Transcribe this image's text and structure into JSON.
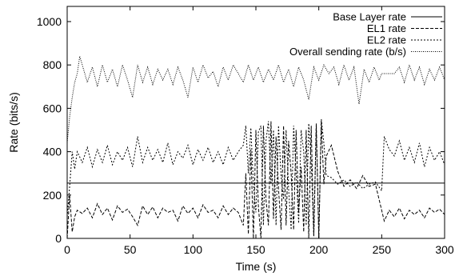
{
  "chart_data": {
    "type": "line",
    "xlabel": "Time (s)",
    "ylabel": "Rate (bits/s)",
    "xlim": [
      0,
      300
    ],
    "ylim": [
      0,
      1070
    ],
    "xticks": [
      "0",
      "50",
      "100",
      "150",
      "200",
      "250",
      "300"
    ],
    "yticks": [
      "0",
      "200",
      "400",
      "600",
      "800",
      "1000"
    ],
    "grid": false,
    "legend_position": "top-right",
    "series": [
      {
        "name": "Base Layer rate",
        "style": "solid",
        "x": [
          0,
          300
        ],
        "y": [
          255,
          255
        ]
      },
      {
        "name": "EL1 rate",
        "style": "dashed",
        "x": [
          0,
          2,
          4,
          6,
          8,
          12,
          16,
          20,
          24,
          28,
          32,
          36,
          40,
          44,
          48,
          52,
          56,
          60,
          64,
          68,
          72,
          76,
          80,
          84,
          88,
          92,
          96,
          100,
          104,
          108,
          112,
          116,
          120,
          124,
          128,
          132,
          136,
          140,
          142,
          144,
          146,
          148,
          150,
          152,
          154,
          156,
          158,
          160,
          162,
          164,
          166,
          168,
          170,
          172,
          174,
          176,
          178,
          180,
          182,
          184,
          186,
          188,
          190,
          192,
          194,
          196,
          198,
          200,
          202,
          204,
          206,
          210,
          215,
          220,
          225,
          230,
          235,
          240,
          245,
          250,
          252,
          256,
          260,
          264,
          268,
          272,
          276,
          280,
          284,
          288,
          292,
          296,
          300
        ],
        "y": [
          0,
          200,
          30,
          100,
          130,
          115,
          140,
          95,
          160,
          110,
          140,
          85,
          150,
          120,
          135,
          100,
          60,
          150,
          110,
          145,
          95,
          140,
          120,
          130,
          80,
          150,
          115,
          140,
          95,
          155,
          120,
          130,
          95,
          150,
          110,
          140,
          120,
          60,
          300,
          20,
          410,
          0,
          500,
          150,
          0,
          520,
          180,
          60,
          540,
          90,
          470,
          230,
          40,
          520,
          60,
          450,
          300,
          40,
          500,
          120,
          330,
          30,
          500,
          0,
          520,
          10,
          530,
          0,
          540,
          250,
          380,
          430,
          310,
          240,
          270,
          230,
          290,
          240,
          250,
          130,
          80,
          130,
          100,
          140,
          90,
          130,
          110,
          130,
          95,
          140,
          120,
          135,
          110
        ]
      },
      {
        "name": "EL2 rate",
        "style": "dashed-fine",
        "x": [
          0,
          2,
          4,
          6,
          8,
          12,
          16,
          20,
          24,
          28,
          32,
          36,
          40,
          44,
          48,
          52,
          56,
          60,
          64,
          68,
          72,
          76,
          80,
          84,
          88,
          92,
          96,
          100,
          104,
          108,
          112,
          116,
          120,
          124,
          128,
          132,
          136,
          140,
          142,
          144,
          146,
          148,
          150,
          152,
          154,
          156,
          158,
          160,
          162,
          164,
          166,
          168,
          170,
          172,
          174,
          176,
          178,
          180,
          182,
          184,
          186,
          188,
          190,
          192,
          194,
          196,
          198,
          200,
          202,
          204,
          206,
          210,
          215,
          220,
          225,
          230,
          235,
          240,
          245,
          250,
          252,
          256,
          260,
          264,
          268,
          272,
          276,
          280,
          284,
          288,
          292,
          296,
          300
        ],
        "y": [
          100,
          240,
          400,
          320,
          400,
          350,
          420,
          330,
          410,
          350,
          430,
          340,
          400,
          360,
          420,
          330,
          470,
          350,
          420,
          360,
          410,
          350,
          440,
          340,
          400,
          370,
          430,
          340,
          410,
          360,
          420,
          350,
          400,
          340,
          420,
          360,
          400,
          430,
          520,
          300,
          510,
          250,
          120,
          490,
          520,
          60,
          450,
          540,
          250,
          500,
          60,
          520,
          290,
          180,
          500,
          230,
          40,
          520,
          300,
          70,
          500,
          400,
          60,
          530,
          350,
          10,
          520,
          0,
          550,
          440,
          290,
          280,
          250,
          270,
          240,
          260,
          230,
          250,
          260,
          220,
          470,
          410,
          380,
          450,
          360,
          420,
          350,
          440,
          330,
          420,
          360,
          400,
          340
        ]
      },
      {
        "name": "Overall sending rate (b/s)",
        "style": "dotted",
        "x": [
          0,
          2,
          4,
          6,
          8,
          10,
          12,
          16,
          20,
          24,
          28,
          32,
          36,
          40,
          44,
          48,
          52,
          56,
          60,
          64,
          68,
          72,
          76,
          80,
          84,
          88,
          92,
          96,
          100,
          104,
          108,
          112,
          116,
          120,
          124,
          128,
          132,
          136,
          140,
          144,
          148,
          152,
          156,
          160,
          164,
          168,
          172,
          176,
          180,
          184,
          188,
          192,
          196,
          200,
          204,
          208,
          212,
          216,
          220,
          224,
          228,
          232,
          236,
          240,
          244,
          248,
          250,
          252,
          256,
          260,
          264,
          268,
          272,
          276,
          280,
          284,
          288,
          292,
          296,
          300
        ],
        "y": [
          440,
          560,
          650,
          720,
          760,
          840,
          800,
          720,
          790,
          700,
          800,
          720,
          780,
          700,
          800,
          730,
          650,
          800,
          720,
          790,
          710,
          780,
          730,
          780,
          710,
          790,
          730,
          650,
          790,
          720,
          800,
          740,
          770,
          700,
          790,
          730,
          800,
          760,
          720,
          800,
          730,
          790,
          720,
          780,
          730,
          800,
          720,
          780,
          700,
          790,
          730,
          640,
          790,
          730,
          800,
          760,
          790,
          710,
          800,
          730,
          790,
          620,
          780,
          720,
          790,
          730,
          760,
          760,
          760,
          760,
          790,
          720,
          800,
          730,
          790,
          710,
          780,
          730,
          790,
          730
        ]
      }
    ]
  }
}
